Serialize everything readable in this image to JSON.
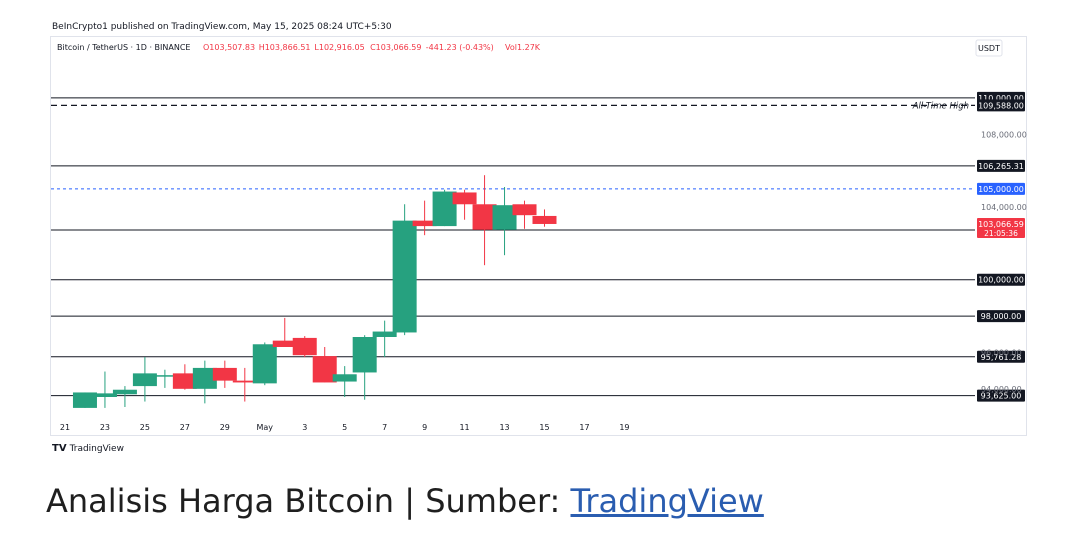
{
  "publisher_line": "BeInCrypto1 published on TradingView.com, May 15, 2025 08:24 UTC+5:30",
  "footer_brand": "TradingView",
  "caption": {
    "prefix": "Analisis Harga Bitcoin | Sumber: ",
    "link_text": "TradingView"
  },
  "colors": {
    "up": "#26a17f",
    "down": "#f23645",
    "blue_line": "#2962ff",
    "grid_text": "#131722"
  },
  "chart_data": {
    "type": "candlestick",
    "symbol_line": {
      "name": "Bitcoin / TetherUS · 1D · BINANCE",
      "O": "O103,507.83",
      "H": "H103,866.51",
      "L": "L102,916.05",
      "C": "C103,066.59",
      "change": "-441.23 (-0.43%)",
      "vol": "Vol1.27K"
    },
    "currency_badge": "USDT",
    "ylim": [
      92450,
      111700
    ],
    "xlim": [
      20.3,
      69.2
    ],
    "x_ticks": [
      {
        "x": 21,
        "label": "21"
      },
      {
        "x": 23,
        "label": "23"
      },
      {
        "x": 25,
        "label": "25"
      },
      {
        "x": 27,
        "label": "27"
      },
      {
        "x": 29,
        "label": "29"
      },
      {
        "x": 31,
        "label": "May"
      },
      {
        "x": 33,
        "label": "3"
      },
      {
        "x": 35,
        "label": "5"
      },
      {
        "x": 37,
        "label": "7"
      },
      {
        "x": 39,
        "label": "9"
      },
      {
        "x": 41,
        "label": "11"
      },
      {
        "x": 43,
        "label": "13"
      },
      {
        "x": 45,
        "label": "15"
      },
      {
        "x": 47,
        "label": "17"
      },
      {
        "x": 49,
        "label": "19"
      }
    ],
    "y_tick_labels": [
      {
        "y": 108000,
        "label": "108,000.00"
      },
      {
        "y": 104000,
        "label": "104,000.00"
      },
      {
        "y": 96000,
        "label": "96,000.00"
      },
      {
        "y": 94000,
        "label": "94,000.00"
      }
    ],
    "levels": [
      {
        "y": 110000,
        "label": "110,000.00",
        "style": "solid"
      },
      {
        "y": 109588,
        "label": "109,588.00",
        "style": "dashed",
        "annotation": "All-Time High"
      },
      {
        "y": 106265.31,
        "label": "106,265.31",
        "style": "solid"
      },
      {
        "y": 105000,
        "label": "105,000.00",
        "style": "blue-dashed"
      },
      {
        "y": 102734.23,
        "label": "102,734.23",
        "style": "solid"
      },
      {
        "y": 100000,
        "label": "100,000.00",
        "style": "solid"
      },
      {
        "y": 98000,
        "label": "98,000.00",
        "style": "solid"
      },
      {
        "y": 95761.28,
        "label": "95,761.28",
        "style": "solid"
      },
      {
        "y": 93625,
        "label": "93,625.00",
        "style": "solid"
      }
    ],
    "last_price": {
      "y": 103066.59,
      "label": "103,066.59",
      "countdown": "21:05:36"
    },
    "candles": [
      {
        "x": 22,
        "o": 92950,
        "h": 93800,
        "l": 92950,
        "c": 93800
      },
      {
        "x": 23,
        "o": 93550,
        "h": 94950,
        "l": 92950,
        "c": 93750
      },
      {
        "x": 24,
        "o": 93700,
        "h": 94150,
        "l": 93000,
        "c": 93950
      },
      {
        "x": 25,
        "o": 94150,
        "h": 95750,
        "l": 93300,
        "c": 94850
      },
      {
        "x": 26,
        "o": 94750,
        "h": 95050,
        "l": 94050,
        "c": 94750
      },
      {
        "x": 27,
        "o": 94850,
        "h": 95350,
        "l": 93950,
        "c": 94000
      },
      {
        "x": 28,
        "o": 94000,
        "h": 95550,
        "l": 93200,
        "c": 95150
      },
      {
        "x": 29,
        "o": 95150,
        "h": 95550,
        "l": 94050,
        "c": 94450
      },
      {
        "x": 30,
        "o": 94450,
        "h": 95150,
        "l": 93300,
        "c": 94350
      },
      {
        "x": 31,
        "o": 94300,
        "h": 96550,
        "l": 94200,
        "c": 96450
      },
      {
        "x": 32,
        "o": 96650,
        "h": 97900,
        "l": 96300,
        "c": 96300
      },
      {
        "x": 33,
        "o": 96800,
        "h": 96900,
        "l": 95750,
        "c": 95850
      },
      {
        "x": 34,
        "o": 95800,
        "h": 96300,
        "l": 94350,
        "c": 94350
      },
      {
        "x": 35,
        "o": 94400,
        "h": 95250,
        "l": 93550,
        "c": 94800
      },
      {
        "x": 36,
        "o": 94900,
        "h": 96950,
        "l": 93400,
        "c": 96850
      },
      {
        "x": 37,
        "o": 96850,
        "h": 97750,
        "l": 95750,
        "c": 97150
      },
      {
        "x": 38,
        "o": 97100,
        "h": 104150,
        "l": 96950,
        "c": 103250
      },
      {
        "x": 39,
        "o": 103250,
        "h": 104350,
        "l": 102450,
        "c": 102950
      },
      {
        "x": 40,
        "o": 102950,
        "h": 104950,
        "l": 102950,
        "c": 104850
      },
      {
        "x": 41,
        "o": 104800,
        "h": 104950,
        "l": 103300,
        "c": 104150
      },
      {
        "x": 42,
        "o": 104150,
        "h": 105750,
        "l": 100800,
        "c": 102750
      },
      {
        "x": 43,
        "o": 102750,
        "h": 105100,
        "l": 101350,
        "c": 104100
      },
      {
        "x": 44,
        "o": 104150,
        "h": 104350,
        "l": 102800,
        "c": 103550
      },
      {
        "x": 45,
        "o": 103507.83,
        "h": 103866.51,
        "l": 102916.05,
        "c": 103066.59
      }
    ]
  }
}
